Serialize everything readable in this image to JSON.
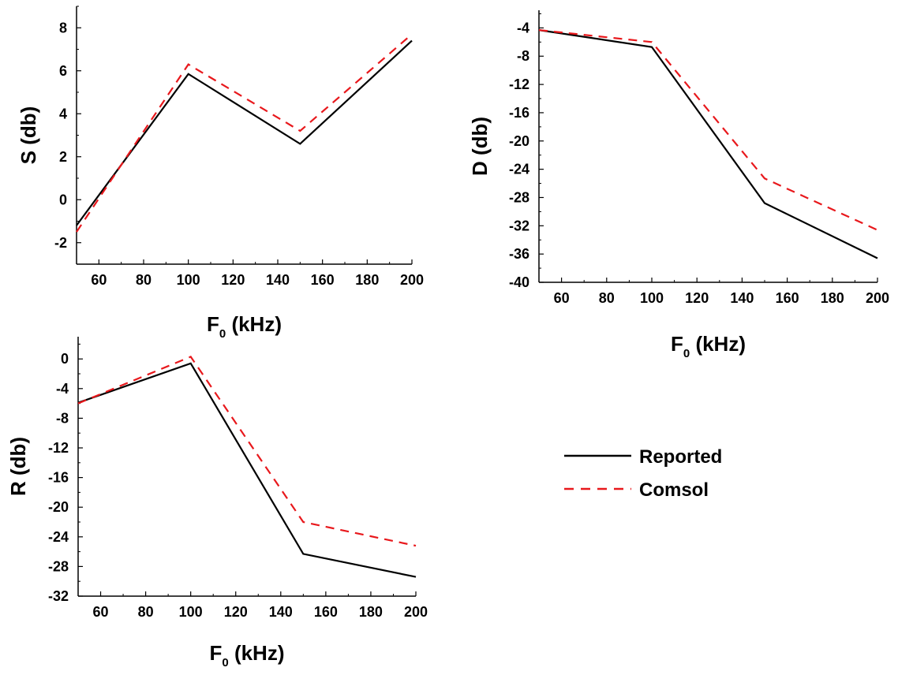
{
  "legend": {
    "items": [
      {
        "label": "Reported",
        "color": "#000000",
        "dash": "solid"
      },
      {
        "label": "Comsol",
        "color": "#e8181c",
        "dash": "dashed"
      }
    ]
  },
  "chart_data": [
    {
      "id": "S",
      "type": "line",
      "xlabel": "F_0 (kHz)",
      "xlabel_main": "F",
      "xlabel_sub": "0",
      "xlabel_rest": " (kHz)",
      "ylabel": "S (db)",
      "xlim": [
        50,
        200
      ],
      "ylim": [
        -3,
        9
      ],
      "x_ticks": [
        60,
        80,
        100,
        120,
        140,
        160,
        180,
        200
      ],
      "y_ticks": [
        -2,
        0,
        2,
        4,
        6,
        8
      ],
      "x": [
        50,
        100,
        150,
        200
      ],
      "series": [
        {
          "name": "Reported",
          "values": [
            -1.2,
            5.85,
            2.6,
            7.4
          ]
        },
        {
          "name": "Comsol",
          "values": [
            -1.5,
            6.3,
            3.2,
            7.7
          ]
        }
      ]
    },
    {
      "id": "D",
      "type": "line",
      "xlabel": "F_0 (kHz)",
      "xlabel_main": "F",
      "xlabel_sub": "0",
      "xlabel_rest": " (kHz)",
      "ylabel": "D (db)",
      "xlim": [
        50,
        200
      ],
      "ylim": [
        -40,
        -1.5
      ],
      "x_ticks": [
        60,
        80,
        100,
        120,
        140,
        160,
        180,
        200
      ],
      "y_ticks": [
        -4,
        -8,
        -12,
        -16,
        -20,
        -24,
        -28,
        -32,
        -36,
        -40
      ],
      "x": [
        50,
        100,
        150,
        200
      ],
      "series": [
        {
          "name": "Reported",
          "values": [
            -4.3,
            -6.7,
            -28.8,
            -36.6
          ]
        },
        {
          "name": "Comsol",
          "values": [
            -4.3,
            -6.0,
            -25.3,
            -32.6
          ]
        }
      ]
    },
    {
      "id": "R",
      "type": "line",
      "xlabel": "F_0 (kHz)",
      "xlabel_main": "F",
      "xlabel_sub": "0",
      "xlabel_rest": " (kHz)",
      "ylabel": "R (db)",
      "xlim": [
        50,
        200
      ],
      "ylim": [
        -32,
        3
      ],
      "x_ticks": [
        60,
        80,
        100,
        120,
        140,
        160,
        180,
        200
      ],
      "y_ticks": [
        0,
        -4,
        -8,
        -12,
        -16,
        -20,
        -24,
        -28,
        -32
      ],
      "x": [
        50,
        100,
        150,
        200
      ],
      "series": [
        {
          "name": "Reported",
          "values": [
            -5.9,
            -0.6,
            -26.3,
            -29.4
          ]
        },
        {
          "name": "Comsol",
          "values": [
            -6.0,
            0.3,
            -22.0,
            -25.2
          ]
        }
      ]
    }
  ]
}
